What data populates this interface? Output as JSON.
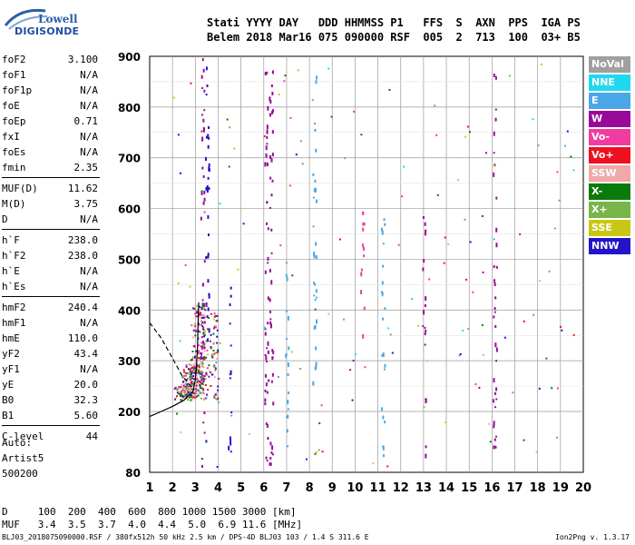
{
  "logo": {
    "line1": "Lowell",
    "line2": "DIGISONDE"
  },
  "header": {
    "line1": "Stati YYYY DAY   DDD HHMMSS P1   FFS  S  AXN  PPS  IGA PS",
    "line2": "Belem 2018 Mar16 075 090000 RSF  005  2  713  100  03+ B5"
  },
  "params_group1": [
    {
      "name": "foF2",
      "value": "3.100"
    },
    {
      "name": "foF1",
      "value": "N/A"
    },
    {
      "name": "foF1p",
      "value": "N/A"
    },
    {
      "name": "foE",
      "value": "N/A"
    },
    {
      "name": "foEp",
      "value": "0.71"
    },
    {
      "name": "fxI",
      "value": "N/A"
    },
    {
      "name": "foEs",
      "value": "N/A"
    },
    {
      "name": "fmin",
      "value": "2.35"
    }
  ],
  "params_group2": [
    {
      "name": "MUF(D)",
      "value": "11.62"
    },
    {
      "name": "M(D)",
      "value": "3.75"
    },
    {
      "name": "D",
      "value": "N/A"
    }
  ],
  "params_group3": [
    {
      "name": "h`F",
      "value": "238.0"
    },
    {
      "name": "h`F2",
      "value": "238.0"
    },
    {
      "name": "h`E",
      "value": "N/A"
    },
    {
      "name": "h`Es",
      "value": "N/A"
    }
  ],
  "params_group4": [
    {
      "name": "hmF2",
      "value": "240.4"
    },
    {
      "name": "hmF1",
      "value": "N/A"
    },
    {
      "name": "hmE",
      "value": "110.0"
    },
    {
      "name": "yF2",
      "value": "43.4"
    },
    {
      "name": "yF1",
      "value": "N/A"
    },
    {
      "name": "yE",
      "value": "20.0"
    },
    {
      "name": "B0",
      "value": "32.3"
    },
    {
      "name": "B1",
      "value": "5.60"
    }
  ],
  "params_group5": [
    {
      "name": "C-level",
      "value": "44"
    }
  ],
  "auto": {
    "line1": "Auto:",
    "line2": "Artist5",
    "line3": "500200"
  },
  "legend": [
    {
      "label": "NoVal",
      "color": "#a0a0a0"
    },
    {
      "label": "NNE",
      "color": "#1fd8f0"
    },
    {
      "label": "E",
      "color": "#4aa8e8"
    },
    {
      "label": "W",
      "color": "#9a0a9a"
    },
    {
      "label": "Vo-",
      "color": "#f03ca0"
    },
    {
      "label": "Vo+",
      "color": "#ee1020"
    },
    {
      "label": "SSW",
      "color": "#f0a8a8"
    },
    {
      "label": "X-",
      "color": "#0a7a0a"
    },
    {
      "label": "X+",
      "color": "#78b44a"
    },
    {
      "label": "SSE",
      "color": "#c8c814"
    },
    {
      "label": "NNW",
      "color": "#2414c8"
    }
  ],
  "chart_data": {
    "type": "scatter",
    "xlim": [
      1,
      20
    ],
    "ylim": [
      80,
      900
    ],
    "x_ticks": [
      1,
      2,
      3,
      4,
      5,
      6,
      7,
      8,
      9,
      10,
      11,
      12,
      13,
      14,
      15,
      16,
      17,
      18,
      19,
      20
    ],
    "y_ticks": [
      80,
      200,
      300,
      400,
      500,
      600,
      700,
      800,
      900
    ],
    "grid": true,
    "trace_F2": [
      [
        2.35,
        240
      ],
      [
        2.5,
        238
      ],
      [
        2.7,
        242
      ],
      [
        2.9,
        252
      ],
      [
        3.0,
        268
      ],
      [
        3.05,
        290
      ],
      [
        3.08,
        320
      ],
      [
        3.1,
        360
      ],
      [
        3.12,
        400
      ]
    ],
    "profile_solid": [
      [
        1.0,
        190
      ],
      [
        1.5,
        200
      ],
      [
        2.0,
        210
      ],
      [
        2.5,
        222
      ],
      [
        2.9,
        240
      ],
      [
        3.0,
        262
      ],
      [
        3.05,
        290
      ],
      [
        3.1,
        330
      ],
      [
        3.12,
        370
      ],
      [
        3.15,
        415
      ]
    ],
    "profile_dashed": [
      [
        1.0,
        375
      ],
      [
        1.5,
        345
      ],
      [
        2.0,
        305
      ],
      [
        2.4,
        272
      ],
      [
        2.7,
        255
      ],
      [
        2.9,
        246
      ]
    ],
    "streaks": [
      {
        "x": 3.3,
        "y0": 90,
        "y1": 900,
        "color": "#9a0a9a"
      },
      {
        "x": 3.5,
        "y0": 120,
        "y1": 900,
        "color": "#2414c8"
      },
      {
        "x": 4.5,
        "y0": 110,
        "y1": 500,
        "color": "#2414c8"
      },
      {
        "x": 6.1,
        "y0": 90,
        "y1": 900,
        "color": "#9a0a9a"
      },
      {
        "x": 6.3,
        "y0": 90,
        "y1": 880,
        "color": "#9a0a9a"
      },
      {
        "x": 7.0,
        "y0": 120,
        "y1": 530,
        "color": "#4aa8e8"
      },
      {
        "x": 8.2,
        "y0": 250,
        "y1": 880,
        "color": "#4aa8e8"
      },
      {
        "x": 10.3,
        "y0": 350,
        "y1": 620,
        "color": "#f03ca0"
      },
      {
        "x": 11.2,
        "y0": 90,
        "y1": 600,
        "color": "#4aa8e8"
      },
      {
        "x": 13.0,
        "y0": 100,
        "y1": 600,
        "color": "#9a0a9a"
      },
      {
        "x": 16.1,
        "y0": 120,
        "y1": 880,
        "color": "#9a0a9a"
      }
    ]
  },
  "bottom": {
    "line1": "D     100  200  400  600  800 1000 1500 3000 [km]",
    "line2": "MUF   3.4  3.5  3.7  4.0  4.4  5.0  6.9 11.6 [MHz]"
  },
  "footer": {
    "left": "BLJ03_2018075090000.RSF / 380fx512h 50 kHz 2.5 km / DPS-4D BLJ03 103 / 1.4 S 311.6 E",
    "right": "Ion2Png v. 1.3.17"
  }
}
